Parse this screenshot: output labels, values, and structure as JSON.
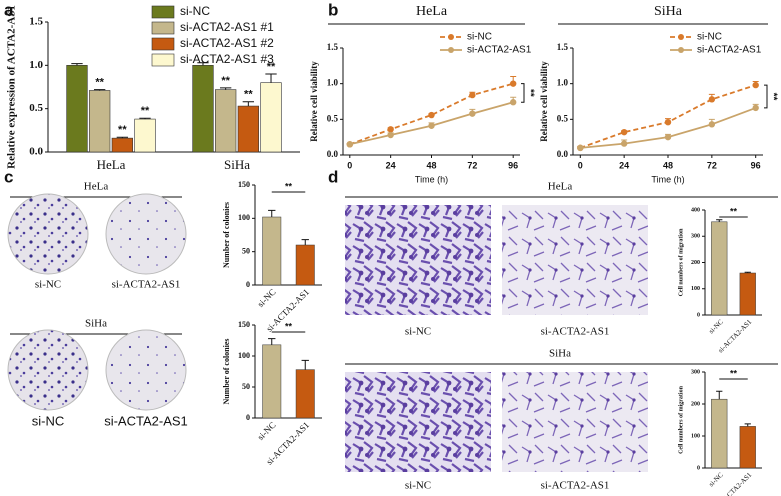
{
  "figure": {
    "panels": [
      "a",
      "b",
      "c",
      "d"
    ],
    "colony": [
      {
        "cell_line": "HeLa",
        "captions": [
          "si-NC",
          "si-ACTA2-AS1"
        ]
      },
      {
        "cell_line": "SiHa",
        "captions": [
          "si-NC",
          "si-ACTA2-AS1"
        ]
      }
    ],
    "migration": [
      {
        "cell_line": "HeLa",
        "captions": [
          "si-NC",
          "si-ACTA2-AS1"
        ]
      },
      {
        "cell_line": "SiHa",
        "captions": [
          "si-NC",
          "si-ACTA2-AS1"
        ]
      }
    ]
  },
  "chart_data": [
    {
      "type": "bar",
      "ylabel": "Relative expression of ACTA2-AS1",
      "categories": [
        "HeLa",
        "SiHa"
      ],
      "series": [
        {
          "name": "si-NC",
          "color": "#6b7a1e",
          "values": [
            1.0,
            1.0
          ],
          "errors": [
            0.02,
            0.03
          ]
        },
        {
          "name": "si-ACTA2-AS1 #1",
          "color": "#c4b78c",
          "values": [
            0.71,
            0.72
          ],
          "errors": [
            0.01,
            0.02
          ],
          "significance": [
            "**",
            "**"
          ]
        },
        {
          "name": "si-ACTA2-AS1 #2",
          "color": "#c55a11",
          "values": [
            0.16,
            0.53
          ],
          "errors": [
            0.01,
            0.05
          ],
          "significance": [
            "**",
            "**"
          ]
        },
        {
          "name": "si-ACTA2-AS1 #3",
          "color": "#fdf8cf",
          "values": [
            0.38,
            0.8
          ],
          "errors": [
            0.01,
            0.1
          ],
          "significance": [
            "**",
            "**"
          ]
        }
      ],
      "ylim": [
        0,
        1.5
      ],
      "yticks": [
        {
          "value": 0,
          "label": "0.0"
        },
        {
          "value": 0.5,
          "label": "0.5"
        },
        {
          "value": 1,
          "label": "1.0"
        },
        {
          "value": 1.5,
          "label": "1.5"
        }
      ],
      "legend": "top-right"
    },
    {
      "type": "line",
      "title": "HeLa",
      "xlabel": "Time (h)",
      "ylabel": "Relative cell viability",
      "x": [
        0,
        24,
        48,
        72,
        96
      ],
      "series": [
        {
          "name": "si-NC",
          "color": "#d97a2b",
          "dashed": true,
          "values": [
            0.15,
            0.36,
            0.56,
            0.84,
            1.0
          ],
          "errors": [
            0.01,
            0.02,
            0.02,
            0.04,
            0.1
          ]
        },
        {
          "name": "si-ACTA2-AS1",
          "color": "#c9a46a",
          "values": [
            0.15,
            0.28,
            0.41,
            0.58,
            0.74
          ],
          "errors": [
            0.01,
            0.03,
            0.04,
            0.06,
            0.07
          ]
        }
      ],
      "xlim": [
        -4,
        100
      ],
      "xticks": [
        0,
        24,
        48,
        72,
        96
      ],
      "ylim": [
        0,
        1.5
      ],
      "yticks": [
        {
          "value": 0,
          "label": "0.0"
        },
        {
          "value": 0.5,
          "label": "0.5"
        },
        {
          "value": 1,
          "label": "1.0"
        },
        {
          "value": 1.5,
          "label": "1.5"
        }
      ],
      "significance": "**",
      "legend": "top-left"
    },
    {
      "type": "line",
      "title": "SiHa",
      "xlabel": "Time (h)",
      "ylabel": "Relative cell viability",
      "x": [
        0,
        24,
        48,
        72,
        96
      ],
      "series": [
        {
          "name": "si-NC",
          "color": "#d97a2b",
          "dashed": true,
          "values": [
            0.1,
            0.32,
            0.46,
            0.78,
            0.98
          ],
          "errors": [
            0.02,
            0.02,
            0.05,
            0.07,
            0.05
          ]
        },
        {
          "name": "si-ACTA2-AS1",
          "color": "#c9a46a",
          "values": [
            0.1,
            0.16,
            0.25,
            0.43,
            0.66
          ],
          "errors": [
            0.02,
            0.05,
            0.04,
            0.07,
            0.05
          ]
        }
      ],
      "xlim": [
        -4,
        100
      ],
      "xticks": [
        0,
        24,
        48,
        72,
        96
      ],
      "ylim": [
        0,
        1.5
      ],
      "yticks": [
        {
          "value": 0,
          "label": "0.0"
        },
        {
          "value": 0.5,
          "label": "0.5"
        },
        {
          "value": 1,
          "label": "1.0"
        },
        {
          "value": 1.5,
          "label": "1.5"
        }
      ],
      "significance": "**",
      "legend": "top-left"
    },
    {
      "type": "bar",
      "ylabel": "Number of colonies",
      "categories": [
        "si-NC",
        "si-ACTA2-AS1"
      ],
      "values": [
        102,
        60
      ],
      "errors": [
        10,
        8
      ],
      "colors": [
        "#c4b78c",
        "#c55a11"
      ],
      "ylim": [
        0,
        150
      ],
      "yticks": [
        0,
        50,
        100,
        150
      ],
      "significance": "**"
    },
    {
      "type": "bar",
      "ylabel": "Number of colonies",
      "categories": [
        "si-NC",
        "si-ACTA2-AS1"
      ],
      "values": [
        118,
        78
      ],
      "errors": [
        10,
        15
      ],
      "colors": [
        "#c4b78c",
        "#c55a11"
      ],
      "ylim": [
        0,
        150
      ],
      "yticks": [
        0,
        50,
        100,
        150
      ],
      "significance": "**"
    },
    {
      "type": "bar",
      "ylabel": "Cell numbers of migration",
      "categories": [
        "si-NC",
        "si-ACTA2-AS1"
      ],
      "values": [
        355,
        160
      ],
      "errors": [
        8,
        3
      ],
      "colors": [
        "#c4b78c",
        "#c55a11"
      ],
      "ylim": [
        0,
        400
      ],
      "yticks": [
        0,
        100,
        200,
        300,
        400
      ],
      "significance": "**"
    },
    {
      "type": "bar",
      "ylabel": "Cell numbers of migration",
      "categories": [
        "si-NC",
        "si-ACTA2-AS1"
      ],
      "values": [
        215,
        130
      ],
      "errors": [
        25,
        8
      ],
      "colors": [
        "#c4b78c",
        "#c55a11"
      ],
      "ylim": [
        0,
        300
      ],
      "yticks": [
        0,
        100,
        200,
        300
      ],
      "significance": "**"
    }
  ]
}
